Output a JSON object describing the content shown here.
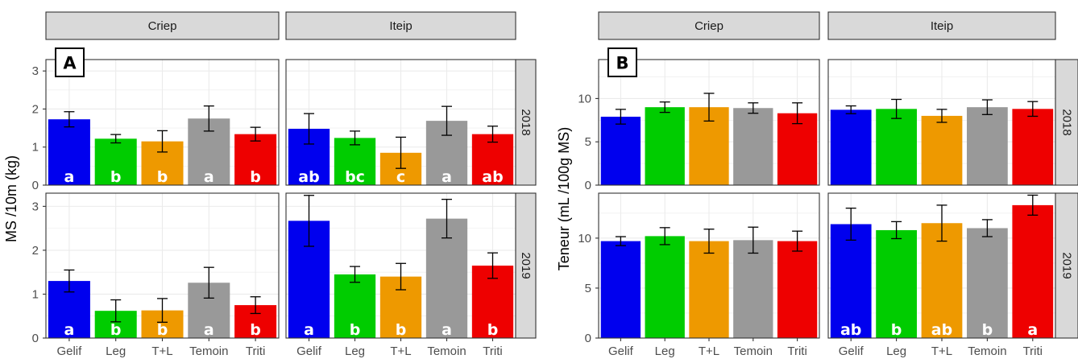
{
  "chart_data": [
    {
      "type": "bar",
      "tag": "A",
      "ylabel": "MS /10m (kg)",
      "categories": [
        "Gelif",
        "Leg",
        "T+L",
        "Temoin",
        "Triti"
      ],
      "colors": [
        "#0000ee",
        "#00cc00",
        "#ee9900",
        "#999999",
        "#ee0000"
      ],
      "facets": {
        "columns": [
          "Criep",
          "Iteip"
        ],
        "rows": [
          "2018",
          "2019"
        ]
      },
      "ylim": [
        0,
        3.3
      ],
      "yticks": [
        "0",
        "1",
        "2",
        "3"
      ],
      "grid": true,
      "panels": [
        {
          "column": "Criep",
          "row": "2018",
          "values": [
            1.73,
            1.22,
            1.15,
            1.75,
            1.34
          ],
          "errors": [
            0.2,
            0.11,
            0.28,
            0.33,
            0.18
          ],
          "letters": [
            "a",
            "b",
            "b",
            "a",
            "b"
          ]
        },
        {
          "column": "Iteip",
          "row": "2018",
          "values": [
            1.48,
            1.24,
            0.85,
            1.69,
            1.34
          ],
          "errors": [
            0.4,
            0.18,
            0.41,
            0.38,
            0.21
          ],
          "letters": [
            "ab",
            "bc",
            "c",
            "a",
            "ab"
          ]
        },
        {
          "column": "Criep",
          "row": "2019",
          "values": [
            1.3,
            0.62,
            0.63,
            1.26,
            0.75
          ],
          "errors": [
            0.25,
            0.25,
            0.27,
            0.35,
            0.19
          ],
          "letters": [
            "a",
            "b",
            "b",
            "a",
            "b"
          ]
        },
        {
          "column": "Iteip",
          "row": "2019",
          "values": [
            2.67,
            1.45,
            1.4,
            2.72,
            1.65
          ],
          "errors": [
            0.58,
            0.18,
            0.3,
            0.44,
            0.29
          ],
          "letters": [
            "a",
            "b",
            "b",
            "a",
            "b"
          ]
        }
      ]
    },
    {
      "type": "bar",
      "tag": "B",
      "ylabel": "Teneur (mL /100g MS)",
      "categories": [
        "Gelif",
        "Leg",
        "T+L",
        "Temoin",
        "Triti"
      ],
      "colors": [
        "#0000ee",
        "#00cc00",
        "#ee9900",
        "#999999",
        "#ee0000"
      ],
      "facets": {
        "columns": [
          "Criep",
          "Iteip"
        ],
        "rows": [
          "2018",
          "2019"
        ]
      },
      "ylim": [
        0,
        14.5
      ],
      "yticks": [
        "0",
        "5",
        "10"
      ],
      "grid": true,
      "panels": [
        {
          "column": "Criep",
          "row": "2018",
          "values": [
            7.9,
            9.0,
            9.0,
            8.9,
            8.3
          ],
          "errors": [
            0.85,
            0.6,
            1.6,
            0.6,
            1.2
          ],
          "letters": []
        },
        {
          "column": "Iteip",
          "row": "2018",
          "values": [
            8.7,
            8.8,
            8.0,
            9.0,
            8.8
          ],
          "errors": [
            0.45,
            1.1,
            0.75,
            0.85,
            0.85
          ],
          "letters": []
        },
        {
          "column": "Criep",
          "row": "2019",
          "values": [
            9.7,
            10.2,
            9.7,
            9.8,
            9.7
          ],
          "errors": [
            0.45,
            0.85,
            1.2,
            1.3,
            1.0
          ],
          "letters": []
        },
        {
          "column": "Iteip",
          "row": "2019",
          "values": [
            11.4,
            10.8,
            11.5,
            11.0,
            13.3
          ],
          "errors": [
            1.6,
            0.85,
            1.8,
            0.85,
            1.0
          ],
          "letters": [
            "ab",
            "b",
            "ab",
            "b",
            "a"
          ]
        }
      ]
    }
  ]
}
